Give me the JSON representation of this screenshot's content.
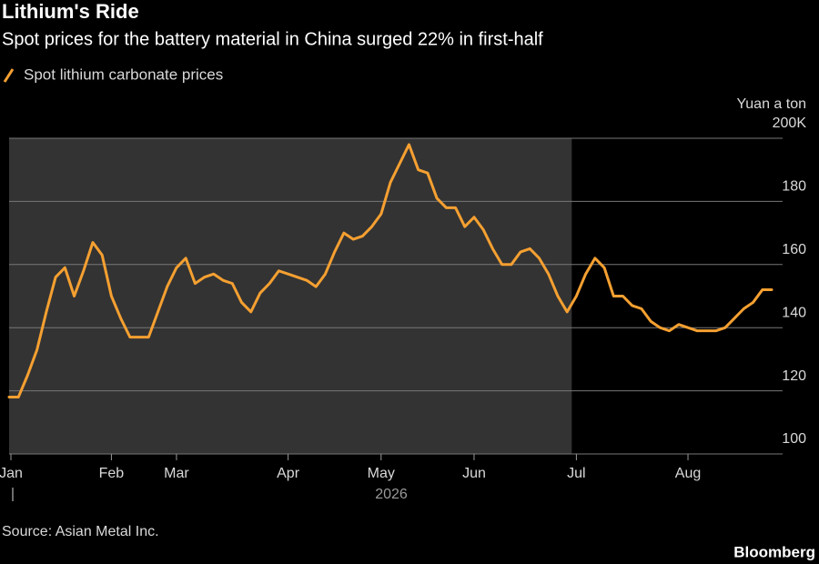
{
  "chart_data": {
    "type": "line",
    "title": "Lithium's Ride",
    "subtitle": "Spot prices for the battery material in China surged 22% in first-half",
    "y_unit": "Yuan a ton",
    "x_label": "2026",
    "source": "Source: Asian Metal Inc.",
    "branding": "Bloomberg",
    "categories": [
      "Jan",
      null,
      null,
      null,
      null,
      null,
      null,
      null,
      null,
      null,
      null,
      "Feb",
      null,
      null,
      null,
      null,
      null,
      null,
      "Mar",
      null,
      null,
      null,
      null,
      null,
      null,
      null,
      null,
      null,
      null,
      null,
      "Apr",
      null,
      null,
      null,
      null,
      null,
      null,
      null,
      null,
      null,
      "May",
      null,
      null,
      null,
      null,
      null,
      null,
      null,
      null,
      null,
      "Jun",
      null,
      null,
      null,
      null,
      null,
      null,
      null,
      null,
      null,
      null,
      "Jul",
      null,
      null,
      null,
      null,
      null,
      null,
      null,
      null,
      null,
      null,
      null,
      "Aug",
      null,
      null,
      null,
      null,
      null,
      null,
      null,
      null,
      null
    ],
    "series": [
      {
        "name": "Spot lithium carbonate prices",
        "color": "#f5a031",
        "values": [
          118,
          118,
          125,
          133,
          145,
          156,
          159,
          150,
          158,
          167,
          163,
          150,
          143,
          137,
          137,
          137,
          145,
          153,
          159,
          162,
          154,
          156,
          157,
          155,
          154,
          148,
          145,
          151,
          154,
          158,
          157,
          156,
          155,
          153,
          157,
          164,
          170,
          168,
          169,
          172,
          176,
          186,
          192,
          198,
          190,
          189,
          181,
          178,
          178,
          172,
          175,
          171,
          165,
          160,
          160,
          164,
          165,
          162,
          157,
          150,
          145,
          150,
          157,
          162,
          159,
          150,
          150,
          147,
          146,
          142,
          140,
          139,
          141,
          140,
          139,
          139,
          139,
          140,
          143,
          146,
          148,
          152,
          152
        ]
      }
    ],
    "ylim": [
      100,
      200
    ],
    "yticks": [
      100,
      120,
      140,
      160,
      180,
      {
        "value": 200,
        "label": "200K"
      }
    ],
    "grid": true,
    "shade": {
      "from": "Jan",
      "to": "Jul",
      "color": "#333333"
    }
  }
}
